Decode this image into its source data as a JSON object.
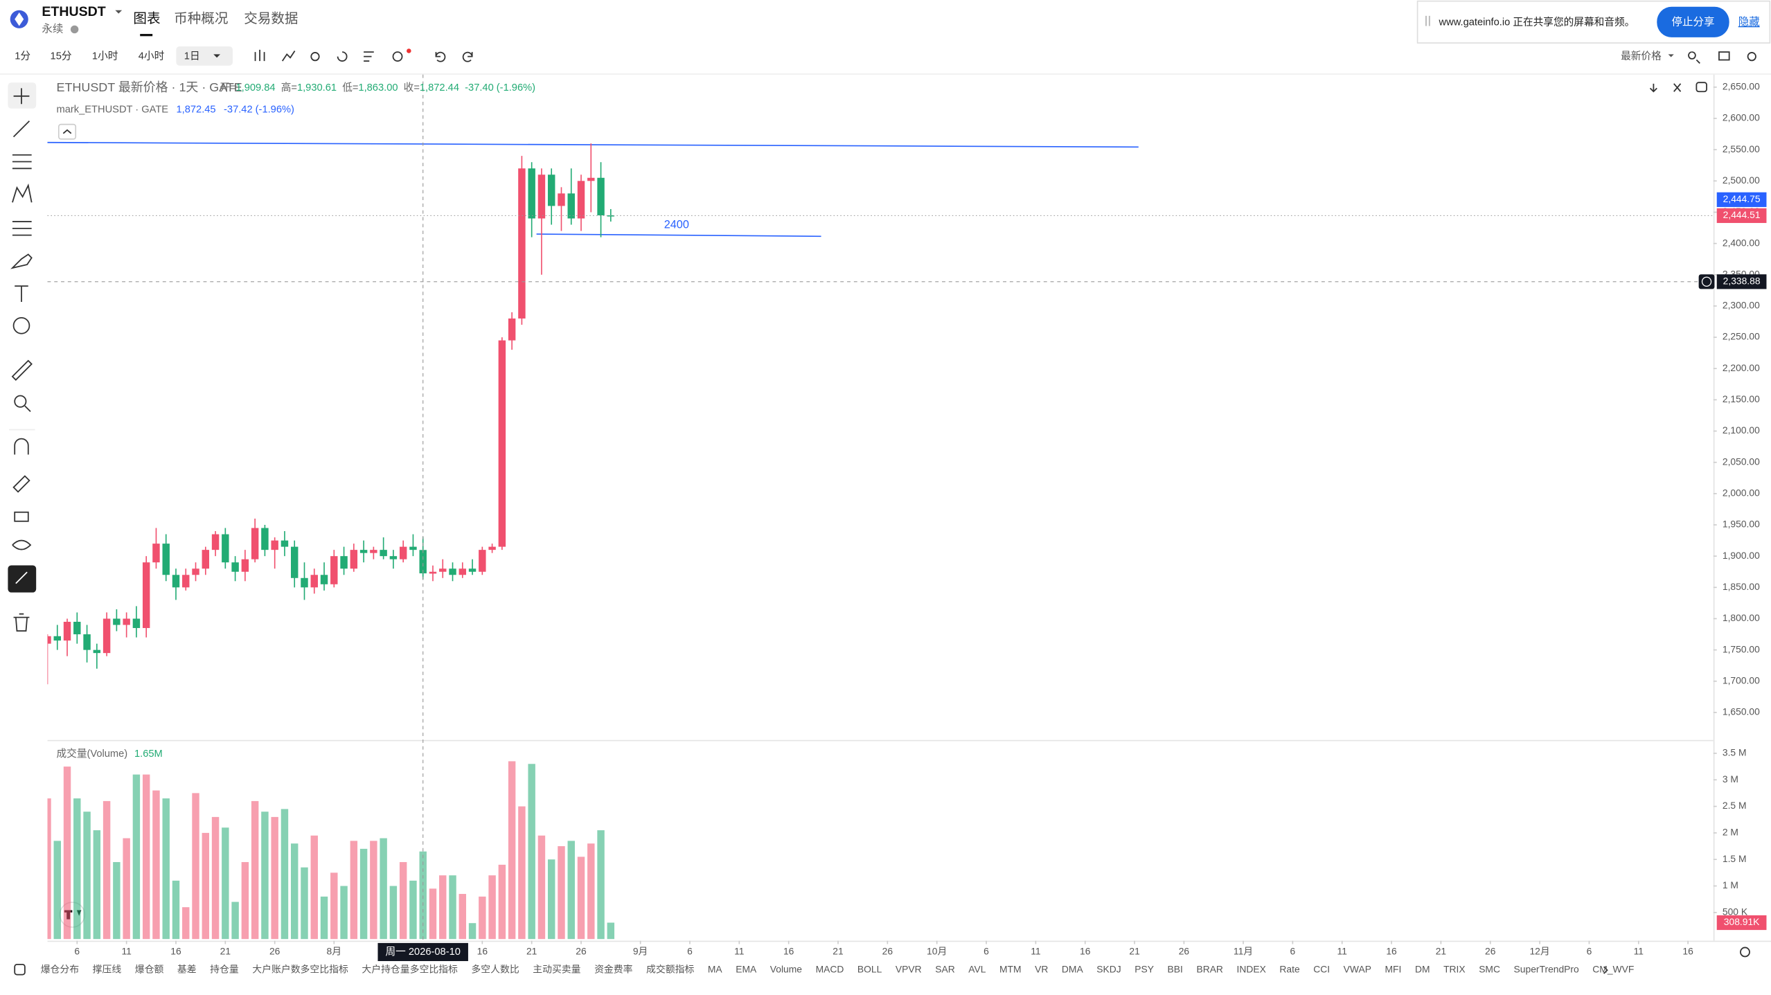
{
  "header": {
    "symbol": "ETHUSDT",
    "contract": "永续",
    "tabs": [
      "图表",
      "币种概况",
      "交易数据"
    ]
  },
  "toolbar": {
    "intervals": [
      "1分",
      "15分",
      "1小时",
      "4小时",
      "1日"
    ],
    "price_source": "最新价格"
  },
  "share_bar": {
    "message": "www.gateinfo.io 正在共享您的屏幕和音频。",
    "stop": "停止分享",
    "hide": "隐藏"
  },
  "chart_data": {
    "type": "candlestick",
    "legend": {
      "title": "ETHUSDT 最新价格 · 1天 · GATE",
      "open_label": "开=",
      "open": "1,909.84",
      "high_label": "高=",
      "high": "1,930.61",
      "low_label": "低=",
      "low": "1,863.00",
      "close_label": "收=",
      "close": "1,872.44",
      "change": "-37.40 (-1.96%)",
      "mark_title": "mark_ETHUSDT · GATE",
      "mark_value": "1,872.45",
      "mark_change": "-37.42 (-1.96%)"
    },
    "x": [
      "2026-07-03",
      "2026-07-04",
      "2026-07-05",
      "2026-07-06",
      "2026-07-07",
      "2026-07-08",
      "2026-07-09",
      "2026-07-10",
      "2026-07-11",
      "2026-07-12",
      "2026-07-13",
      "2026-07-14",
      "2026-07-15",
      "2026-07-16",
      "2026-07-17",
      "2026-07-18",
      "2026-07-19",
      "2026-07-20",
      "2026-07-21",
      "2026-07-22",
      "2026-07-23",
      "2026-07-24",
      "2026-07-25",
      "2026-07-26",
      "2026-07-27",
      "2026-07-28",
      "2026-07-29",
      "2026-07-30",
      "2026-07-31",
      "2026-08-01",
      "2026-08-02",
      "2026-08-03",
      "2026-08-04",
      "2026-08-05",
      "2026-08-06",
      "2026-08-07",
      "2026-08-08",
      "2026-08-09",
      "2026-08-10",
      "2026-08-11",
      "2026-08-12",
      "2026-08-13",
      "2026-08-14",
      "2026-08-15",
      "2026-08-16",
      "2026-08-17",
      "2026-08-18",
      "2026-08-19",
      "2026-08-20",
      "2026-08-21",
      "2026-08-22",
      "2026-08-23",
      "2026-08-24",
      "2026-08-25",
      "2026-08-26",
      "2026-08-27",
      "2026-08-28",
      "2026-08-29"
    ],
    "open": [
      1760,
      1772,
      1765,
      1795,
      1775,
      1750,
      1745,
      1800,
      1790,
      1800,
      1785,
      1890,
      1920,
      1870,
      1850,
      1870,
      1880,
      1910,
      1935,
      1890,
      1875,
      1895,
      1945,
      1910,
      1925,
      1915,
      1865,
      1850,
      1870,
      1855,
      1900,
      1880,
      1910,
      1905,
      1910,
      1900,
      1895,
      1915,
      1909.84,
      1872,
      1875,
      1880,
      1870,
      1880,
      1875,
      1910,
      1915,
      2245,
      2280,
      2520,
      2440,
      2510,
      2460,
      2480,
      2440,
      2500,
      2505,
      2445
    ],
    "high": [
      1775,
      1790,
      1800,
      1810,
      1790,
      1760,
      1810,
      1815,
      1810,
      1820,
      1900,
      1945,
      1935,
      1880,
      1880,
      1890,
      1915,
      1940,
      1945,
      1900,
      1910,
      1960,
      1950,
      1930,
      1940,
      1925,
      1890,
      1880,
      1890,
      1910,
      1915,
      1920,
      1925,
      1915,
      1930,
      1910,
      1925,
      1935,
      1930.61,
      1885,
      1895,
      1890,
      1890,
      1895,
      1915,
      1920,
      2250,
      2290,
      2540,
      2530,
      2520,
      2520,
      2490,
      2520,
      2510,
      2560,
      2530,
      2455
    ],
    "low": [
      1695,
      1750,
      1740,
      1760,
      1730,
      1720,
      1740,
      1780,
      1770,
      1770,
      1770,
      1880,
      1860,
      1830,
      1845,
      1860,
      1870,
      1900,
      1880,
      1860,
      1860,
      1890,
      1900,
      1880,
      1900,
      1850,
      1830,
      1840,
      1845,
      1850,
      1870,
      1875,
      1890,
      1895,
      1895,
      1880,
      1890,
      1900,
      1863,
      1860,
      1865,
      1860,
      1865,
      1870,
      1870,
      1905,
      1910,
      2230,
      2270,
      2410,
      2350,
      2430,
      2420,
      2430,
      2420,
      2450,
      2410,
      2435
    ],
    "close": [
      1772,
      1765,
      1795,
      1775,
      1750,
      1745,
      1800,
      1790,
      1800,
      1785,
      1890,
      1920,
      1870,
      1850,
      1870,
      1880,
      1910,
      1935,
      1890,
      1875,
      1895,
      1945,
      1910,
      1925,
      1915,
      1865,
      1850,
      1870,
      1855,
      1900,
      1880,
      1910,
      1905,
      1910,
      1900,
      1895,
      1915,
      1910,
      1872.44,
      1875,
      1880,
      1870,
      1880,
      1875,
      1910,
      1915,
      2245,
      2280,
      2520,
      2440,
      2510,
      2460,
      2480,
      2440,
      2500,
      2505,
      2445,
      2444.51
    ],
    "up_color": "#f0506e",
    "down_color": "#22ab74",
    "line_color": "#2962ff",
    "xlim": [
      "2026-07-03",
      "2026-12-18"
    ],
    "xticks": [
      {
        "value": "2026-07-06",
        "label": "6"
      },
      {
        "value": "2026-07-11",
        "label": "11"
      },
      {
        "value": "2026-07-16",
        "label": "16"
      },
      {
        "value": "2026-07-21",
        "label": "21"
      },
      {
        "value": "2026-07-26",
        "label": "26"
      },
      {
        "value": "2026-08-01",
        "label": "8月"
      },
      {
        "value": "2026-08-16",
        "label": "16"
      },
      {
        "value": "2026-08-21",
        "label": "21"
      },
      {
        "value": "2026-08-26",
        "label": "26"
      },
      {
        "value": "2026-09-01",
        "label": "9月"
      },
      {
        "value": "2026-09-06",
        "label": "6"
      },
      {
        "value": "2026-09-11",
        "label": "11"
      },
      {
        "value": "2026-09-16",
        "label": "16"
      },
      {
        "value": "2026-09-21",
        "label": "21"
      },
      {
        "value": "2026-09-26",
        "label": "26"
      },
      {
        "value": "2026-10-01",
        "label": "10月"
      },
      {
        "value": "2026-10-06",
        "label": "6"
      },
      {
        "value": "2026-10-11",
        "label": "11"
      },
      {
        "value": "2026-10-16",
        "label": "16"
      },
      {
        "value": "2026-10-21",
        "label": "21"
      },
      {
        "value": "2026-10-26",
        "label": "26"
      },
      {
        "value": "2026-11-01",
        "label": "11月"
      },
      {
        "value": "2026-11-06",
        "label": "6"
      },
      {
        "value": "2026-11-11",
        "label": "11"
      },
      {
        "value": "2026-11-16",
        "label": "16"
      },
      {
        "value": "2026-11-21",
        "label": "21"
      },
      {
        "value": "2026-11-26",
        "label": "26"
      },
      {
        "value": "2026-12-01",
        "label": "12月"
      },
      {
        "value": "2026-12-06",
        "label": "6"
      },
      {
        "value": "2026-12-11",
        "label": "11"
      },
      {
        "value": "2026-12-16",
        "label": "16"
      }
    ],
    "ylim": [
      1605,
      2670
    ],
    "yticks": [
      {
        "value": 1650,
        "label": "1,650.00"
      },
      {
        "value": 1700,
        "label": "1,700.00"
      },
      {
        "value": 1750,
        "label": "1,750.00"
      },
      {
        "value": 1800,
        "label": "1,800.00"
      },
      {
        "value": 1850,
        "label": "1,850.00"
      },
      {
        "value": 1900,
        "label": "1,900.00"
      },
      {
        "value": 1950,
        "label": "1,950.00"
      },
      {
        "value": 2000,
        "label": "2,000.00"
      },
      {
        "value": 2050,
        "label": "2,050.00"
      },
      {
        "value": 2100,
        "label": "2,100.00"
      },
      {
        "value": 2150,
        "label": "2,150.00"
      },
      {
        "value": 2200,
        "label": "2,200.00"
      },
      {
        "value": 2250,
        "label": "2,250.00"
      },
      {
        "value": 2300,
        "label": "2,300.00"
      },
      {
        "value": 2350,
        "label": "2,350.00"
      },
      {
        "value": 2400,
        "label": "2,400.00"
      },
      {
        "value": 2450,
        "label": "2,450.00"
      },
      {
        "value": 2500,
        "label": "2,500.00"
      },
      {
        "value": 2550,
        "label": "2,550.00"
      },
      {
        "value": 2600,
        "label": "2,600.00"
      },
      {
        "value": 2650,
        "label": "2,650.00"
      }
    ],
    "last_price_label": "2,444.51",
    "mark_price": {
      "value": 2444.75,
      "label": "2,444.75"
    },
    "crosshair": {
      "x": "2026-08-10",
      "label": "周一 2026-08-10",
      "price": {
        "value": 2338.88,
        "label": "2,338.88"
      }
    },
    "drawings": [
      {
        "label": "2400"
      }
    ],
    "volume": {
      "title": "成交量(Volume)",
      "value_label": "1.65M",
      "values": [
        2650000,
        1850000,
        3250000,
        2650000,
        2400000,
        2050000,
        2600000,
        1450000,
        1900000,
        3100000,
        3100000,
        2800000,
        2650000,
        1100000,
        600000,
        2750000,
        2000000,
        2300000,
        2100000,
        700000,
        1450000,
        2600000,
        2400000,
        2300000,
        2450000,
        1800000,
        1350000,
        1950000,
        800000,
        1250000,
        1000000,
        1850000,
        1700000,
        1850000,
        1900000,
        1000000,
        1450000,
        1100000,
        1650000,
        950000,
        1200000,
        1200000,
        850000,
        300000,
        800000,
        1200000,
        1400000,
        3350000,
        2500000,
        3300000,
        1950000,
        1500000,
        1750000,
        1850000,
        1550000,
        1800000,
        2050000,
        308910
      ],
      "last_label": "308.91K",
      "ylim": [
        0,
        3750000
      ],
      "yticks": [
        {
          "value": 500000,
          "label": "500 K"
        },
        {
          "value": 1000000,
          "label": "1 M"
        },
        {
          "value": 1500000,
          "label": "1.5 M"
        },
        {
          "value": 2000000,
          "label": "2 M"
        },
        {
          "value": 2500000,
          "label": "2.5 M"
        },
        {
          "value": 3000000,
          "label": "3 M"
        },
        {
          "value": 3500000,
          "label": "3.5 M"
        }
      ]
    }
  },
  "indicators": [
    "爆仓分布",
    "撑压线",
    "爆仓额",
    "基差",
    "持仓量",
    "大户账户数多空比指标",
    "大户持仓量多空比指标",
    "多空人数比",
    "主动买卖量",
    "资金费率",
    "成交额指标",
    "MA",
    "EMA",
    "Volume",
    "MACD",
    "BOLL",
    "VPVR",
    "SAR",
    "AVL",
    "MTM",
    "VR",
    "DMA",
    "SKDJ",
    "PSY",
    "BBI",
    "BRAR",
    "INDEX",
    "Rate",
    "CCI",
    "VWAP",
    "MFI",
    "DM",
    "TRIX",
    "SMC",
    "SuperTrendPro",
    "CM_WVF"
  ]
}
